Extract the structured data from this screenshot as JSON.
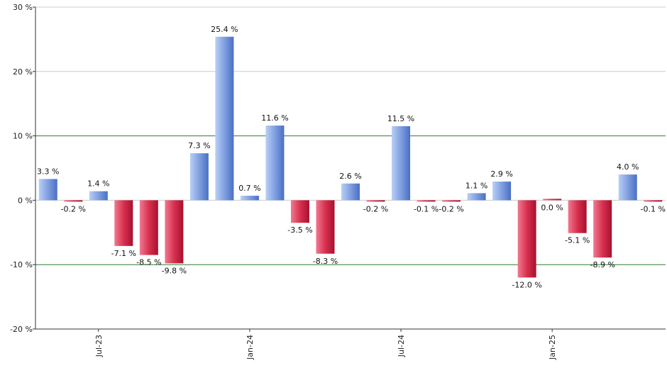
{
  "chart_data": {
    "type": "bar",
    "title": "",
    "xlabel": "",
    "ylabel": "",
    "ylim": [
      -20,
      30
    ],
    "y_ticks": [
      30,
      20,
      10,
      0,
      -10,
      -20
    ],
    "y_tick_labels": [
      "30 %",
      "20 %",
      "10 %",
      "0 %",
      "-10 %",
      "-20 %"
    ],
    "x_tick_labels": [
      "Jul-23",
      "Jan-24",
      "Jul-24",
      "Jan-25"
    ],
    "x_tick_index": [
      2,
      8,
      14,
      20
    ],
    "values": [
      3.3,
      -0.2,
      1.4,
      -7.1,
      -8.5,
      -9.8,
      7.3,
      25.4,
      0.7,
      11.6,
      -3.5,
      -8.3,
      2.6,
      -0.2,
      11.5,
      -0.1,
      -0.2,
      1.1,
      2.9,
      -12.0,
      0.0,
      -5.1,
      -8.9,
      4.0,
      -0.1
    ],
    "value_labels": [
      "3.3 %",
      "-0.2 %",
      "1.4 %",
      "-7.1 %",
      "-8.5 %",
      "-9.8 %",
      "7.3 %",
      "25.4 %",
      "0.7 %",
      "11.6 %",
      "-3.5 %",
      "-8.3 %",
      "2.6 %",
      "-0.2 %",
      "11.5 %",
      "-0.1 %",
      "-0.2 %",
      "1.1 %",
      "2.9 %",
      "-12.0 %",
      "0.0 %",
      "-5.1 %",
      "-8.9 %",
      "4.0 %",
      "-0.1 %"
    ],
    "reference_lines": [
      10,
      -10
    ],
    "grid": true,
    "colors": {
      "positive_light": "#b9cff5",
      "positive_dark": "#4a6fc4",
      "negative_light": "#f07a90",
      "negative_dark": "#a8102e",
      "grid": "#cccccc",
      "reference": "#2e7d2e",
      "axis": "#333333"
    }
  }
}
